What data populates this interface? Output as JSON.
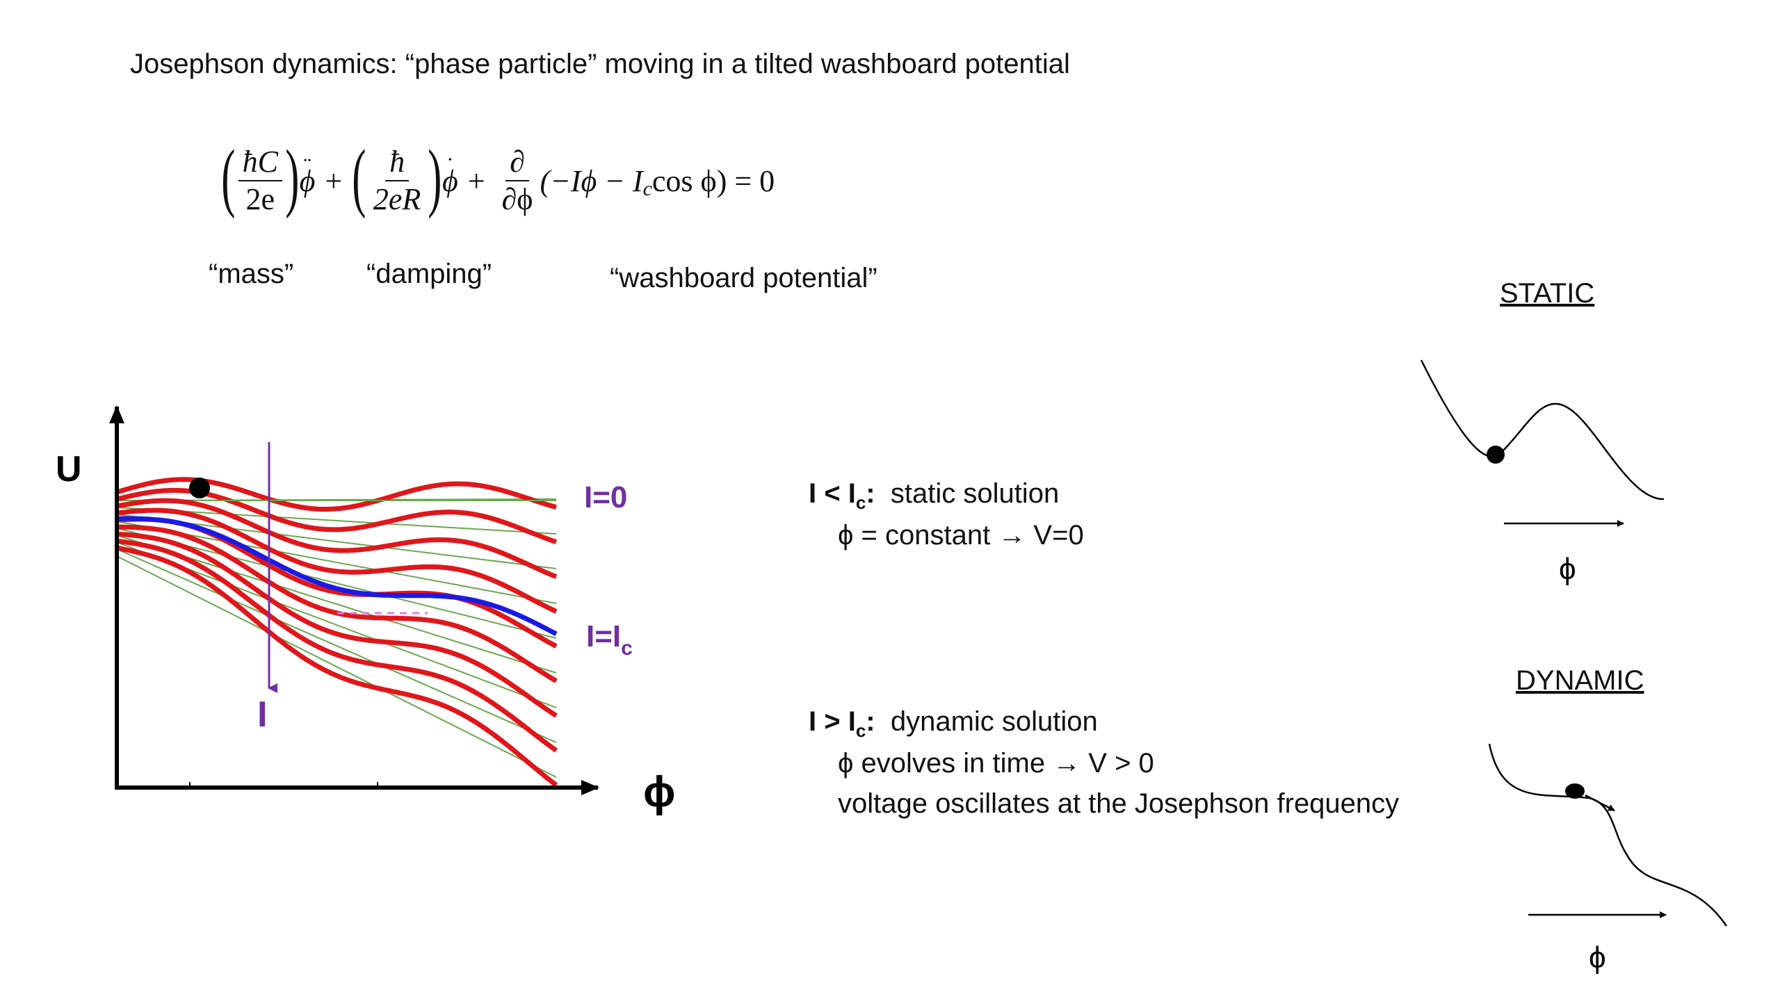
{
  "title": "Josephson dynamics: “phase particle” moving in a tilted washboard potential",
  "equation": {
    "mass_num": "ħC",
    "mass_den": "2e",
    "damp_num": "ħ",
    "damp_den": "2eR",
    "partial_num": "∂",
    "partial_den": "∂ϕ",
    "potential": "(−Iϕ − I",
    "potential_sub": "c",
    "potential_tail": " cos ϕ) = 0"
  },
  "labels": {
    "mass": "“mass”",
    "damping": "“damping”",
    "washboard": "“washboard potential”"
  },
  "plot": {
    "y_axis_label": "U",
    "x_axis_label": "ϕ",
    "current_label": "I",
    "i0_label": "I=0",
    "ic_label_main": "I=I",
    "ic_label_sub": "c",
    "colors": {
      "curve": "#e0161b",
      "critical": "#1a1ae6",
      "thin": "#6aa84f",
      "label": "#7030a0",
      "dashed": "#e07ce0"
    }
  },
  "static_section": {
    "condition_main": "I < I",
    "condition_sub": "c",
    "condition_colon": ":",
    "condition_text": "static solution",
    "line2": "ϕ = constant →  V=0"
  },
  "dynamic_section": {
    "condition_main": "I > I",
    "condition_sub": "c",
    "condition_colon": ":",
    "condition_text": "dynamic solution",
    "line2": "ϕ evolves in time  →  V > 0",
    "line3": "voltage oscillates at the Josephson frequency"
  },
  "static_sketch": {
    "title": "STATIC",
    "axis_label": "ϕ"
  },
  "dynamic_sketch": {
    "title": "DYNAMIC",
    "axis_label": "ϕ"
  }
}
